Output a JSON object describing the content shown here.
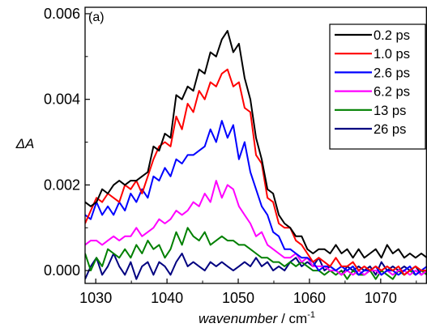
{
  "chart_data": {
    "type": "line",
    "panel_label": "(a)",
    "ylabel": "ΔA",
    "xlabel_main": "wavenumber",
    "xlabel_unit": " / cm",
    "xlabel_sup": "-1",
    "xlim": [
      1028.5,
      1076.5
    ],
    "ylim": [
      -0.0003,
      0.00615
    ],
    "xticks": [
      1030,
      1040,
      1050,
      1060,
      1070
    ],
    "xtick_labels": [
      "1030",
      "1040",
      "1050",
      "1060",
      "1070"
    ],
    "yticks": [
      0.0,
      0.002,
      0.004,
      0.006
    ],
    "ytick_labels": [
      "0.000",
      "0.002",
      "0.004",
      "0.006"
    ],
    "legend_position": "top-right",
    "grid": false,
    "x": [
      1028.5,
      1029.3,
      1030.1,
      1030.9,
      1031.7,
      1032.5,
      1033.3,
      1034.1,
      1034.9,
      1035.7,
      1036.5,
      1037.3,
      1038.1,
      1038.9,
      1039.7,
      1040.5,
      1041.3,
      1042.1,
      1042.9,
      1043.7,
      1044.5,
      1045.3,
      1046.1,
      1046.9,
      1047.7,
      1048.5,
      1049.3,
      1050.1,
      1050.9,
      1051.7,
      1052.5,
      1053.3,
      1054.1,
      1054.9,
      1055.7,
      1056.5,
      1057.3,
      1058.1,
      1058.9,
      1059.7,
      1060.5,
      1061.3,
      1062.1,
      1062.9,
      1063.7,
      1064.5,
      1065.3,
      1066.1,
      1066.9,
      1067.7,
      1068.5,
      1069.3,
      1070.1,
      1070.9,
      1071.7,
      1072.5,
      1073.3,
      1074.1,
      1074.9,
      1075.7,
      1076.5
    ],
    "series": [
      {
        "name": "0.2 ps",
        "color": "#000000",
        "values": [
          0.0016,
          0.0015,
          0.0016,
          0.0019,
          0.0018,
          0.002,
          0.0021,
          0.002,
          0.0021,
          0.0021,
          0.0022,
          0.0023,
          0.0029,
          0.0028,
          0.0032,
          0.0031,
          0.0041,
          0.004,
          0.0043,
          0.0042,
          0.0047,
          0.0046,
          0.0051,
          0.005,
          0.0054,
          0.0056,
          0.0051,
          0.0053,
          0.0045,
          0.004,
          0.0031,
          0.0026,
          0.0019,
          0.0018,
          0.0013,
          0.0011,
          0.001,
          0.0008,
          0.0008,
          0.0005,
          0.0004,
          0.0005,
          0.0005,
          0.0004,
          0.0006,
          0.0004,
          0.0005,
          0.0003,
          0.0005,
          0.0003,
          0.0004,
          0.0005,
          0.0003,
          0.0006,
          0.0004,
          0.0005,
          0.0003,
          0.0004,
          0.0003,
          0.0004,
          0.0003
        ]
      },
      {
        "name": "1.0 ps",
        "color": "#ff0000",
        "values": [
          0.0011,
          0.0014,
          0.0017,
          0.0016,
          0.0018,
          0.0017,
          0.0016,
          0.002,
          0.0019,
          0.0021,
          0.0018,
          0.0022,
          0.0026,
          0.0029,
          0.003,
          0.0029,
          0.0036,
          0.0033,
          0.0039,
          0.0037,
          0.0042,
          0.004,
          0.0044,
          0.0043,
          0.0046,
          0.0047,
          0.0043,
          0.0044,
          0.0038,
          0.0037,
          0.0027,
          0.0025,
          0.0017,
          0.0016,
          0.0011,
          0.001,
          0.001,
          0.0007,
          0.0006,
          0.0004,
          0.0002,
          0.0003,
          0.0002,
          0.0001,
          0.0003,
          0.0001,
          0.0001,
          0.0002,
          0.0,
          0.0001,
          0.0,
          0.0001,
          0.0,
          0.0001,
          0.0,
          0.0001,
          -0.0001,
          0.0,
          0.0001,
          0.0,
          0.0
        ]
      },
      {
        "name": "2.6 ps",
        "color": "#0000ff",
        "values": [
          0.0013,
          0.0012,
          0.0016,
          0.0013,
          0.0015,
          0.0013,
          0.0016,
          0.0014,
          0.0018,
          0.0016,
          0.0019,
          0.0017,
          0.0022,
          0.0021,
          0.0024,
          0.0022,
          0.0026,
          0.0025,
          0.0027,
          0.0027,
          0.0028,
          0.0029,
          0.0033,
          0.003,
          0.0035,
          0.0031,
          0.0034,
          0.0026,
          0.003,
          0.0023,
          0.0019,
          0.0015,
          0.0013,
          0.0009,
          0.0008,
          0.0005,
          0.0005,
          0.0004,
          0.0003,
          0.0003,
          0.0002,
          0.0,
          0.0001,
          0.0001,
          0.0,
          0.0001,
          0.0,
          0.0001,
          -0.0001,
          0.0,
          0.0,
          0.0001,
          -0.0001,
          0.0,
          0.0,
          -0.0001,
          0.0,
          0.0001,
          -0.0001,
          0.0,
          0.0001
        ]
      },
      {
        "name": "6.2 ps",
        "color": "#ff00ff",
        "values": [
          0.0006,
          0.0007,
          0.0007,
          0.0006,
          0.0007,
          0.0008,
          0.0007,
          0.0008,
          0.0008,
          0.001,
          0.0008,
          0.0009,
          0.001,
          0.0012,
          0.0011,
          0.0012,
          0.0014,
          0.0013,
          0.0014,
          0.0016,
          0.0015,
          0.0018,
          0.0016,
          0.0021,
          0.0017,
          0.002,
          0.0019,
          0.0015,
          0.0013,
          0.0011,
          0.0008,
          0.0009,
          0.0006,
          0.0005,
          0.0004,
          0.0003,
          0.0003,
          0.0004,
          0.0002,
          0.0003,
          0.0001,
          0.0001,
          0.0001,
          0.0,
          0.0,
          -0.0001,
          0.0,
          -0.0001,
          0.0,
          -0.0001,
          0.0,
          0.0,
          -0.0001,
          0.0,
          -0.0001,
          0.0,
          0.0,
          -0.0001,
          0.0,
          -0.0001,
          0.0
        ]
      },
      {
        "name": "13 ps",
        "color": "#008000",
        "values": [
          0.0004,
          0.0,
          0.0003,
          0.0001,
          0.0005,
          0.0004,
          0.0003,
          0.0005,
          0.0003,
          0.0006,
          0.0004,
          0.0007,
          0.0005,
          0.0006,
          0.0003,
          0.0005,
          0.0009,
          0.0006,
          0.001,
          0.0008,
          0.0007,
          0.0009,
          0.0006,
          0.0007,
          0.0008,
          0.0007,
          0.0007,
          0.0006,
          0.0006,
          0.0005,
          0.0004,
          0.0003,
          0.0003,
          0.0002,
          0.0002,
          0.0001,
          0.0002,
          0.0001,
          0.0002,
          0.0001,
          0.0,
          0.0,
          -0.0001,
          0.0,
          -0.0001,
          0.0,
          -0.0002,
          0.0,
          -0.0001,
          -0.0001,
          0.0,
          -0.0002,
          0.0,
          -0.0001,
          -0.0002,
          0.0,
          -0.0001,
          0.0,
          -0.0001,
          0.0,
          -0.0001
        ]
      },
      {
        "name": "26 ps",
        "color": "#000080",
        "values": [
          -0.0002,
          0.0001,
          0.0003,
          -0.0001,
          0.0001,
          0.0004,
          0.0001,
          -0.0001,
          0.0002,
          -0.0002,
          0.0001,
          0.0002,
          -0.0001,
          0.0002,
          0.0001,
          -0.0001,
          0.0002,
          0.0004,
          0.0001,
          0.0002,
          0.0001,
          0.0,
          0.0002,
          0.0001,
          0.0002,
          0.0001,
          0.0,
          0.0001,
          0.0002,
          0.0001,
          0.0003,
          0.0001,
          0.0002,
          0.0,
          0.0001,
          0.0,
          0.0002,
          0.0003,
          0.0001,
          0.0002,
          0.0001,
          0.0003,
          0.0,
          0.0001,
          0.0,
          -0.0001,
          0.0001,
          0.0,
          0.0001,
          0.0,
          0.0001,
          -0.0001,
          0.0002,
          0.0,
          0.0001,
          0.0,
          0.0001,
          0.0,
          0.0001,
          -0.0001,
          0.0
        ]
      }
    ]
  }
}
